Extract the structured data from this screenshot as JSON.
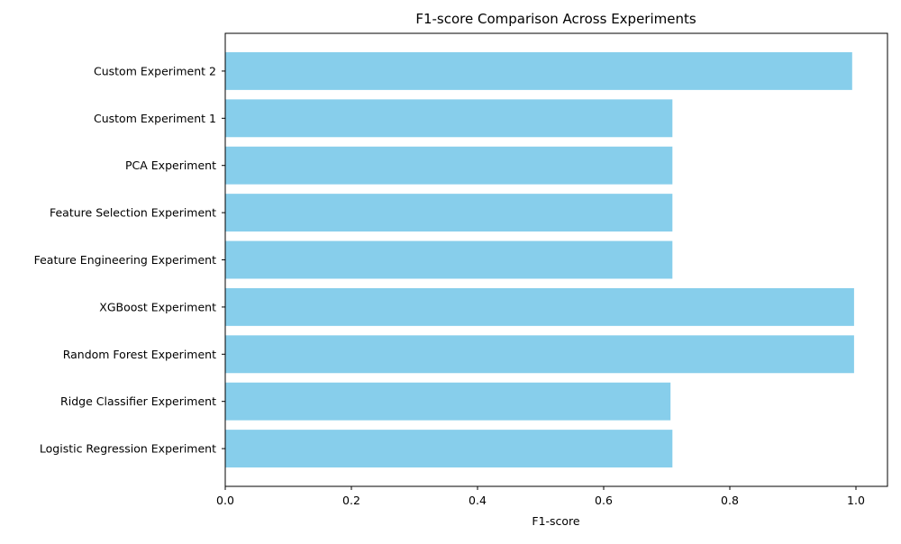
{
  "chart_data": {
    "type": "bar",
    "orientation": "horizontal",
    "title": "F1-score Comparison Across Experiments",
    "xlabel": "F1-score",
    "ylabel": "",
    "xlim": [
      0.0,
      1.05
    ],
    "xticks": [
      "0.0",
      "0.2",
      "0.4",
      "0.6",
      "0.8",
      "1.0"
    ],
    "categories": [
      "Logistic Regression Experiment",
      "Ridge Classifier Experiment",
      "Random Forest Experiment",
      "XGBoost Experiment",
      "Feature Engineering Experiment",
      "Feature Selection Experiment",
      "PCA Experiment",
      "Custom Experiment 1",
      "Custom Experiment 2"
    ],
    "values": [
      0.709,
      0.706,
      0.997,
      0.997,
      0.709,
      0.709,
      0.709,
      0.709,
      0.994
    ],
    "bar_color": "#87ceeb",
    "grid": false,
    "legend": "none"
  }
}
